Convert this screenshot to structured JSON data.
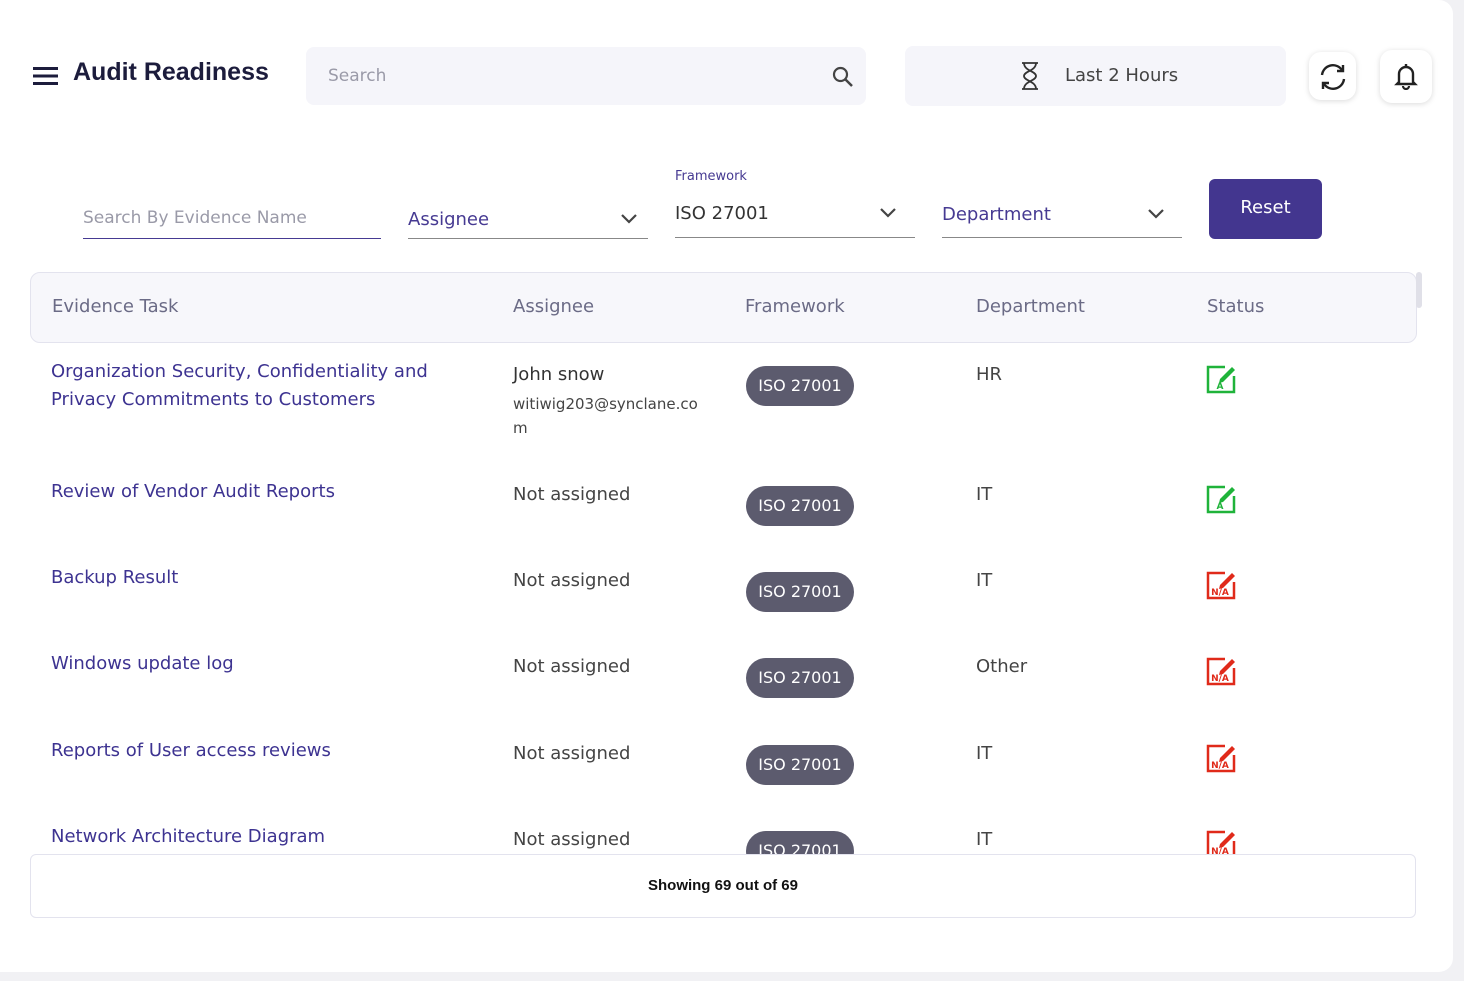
{
  "header": {
    "title": "Audit Readiness",
    "search_placeholder": "Search",
    "time_range": "Last 2 Hours"
  },
  "filters": {
    "evidence_placeholder": "Search By Evidence Name",
    "assignee": "Assignee",
    "framework_label": "Framework",
    "framework": "ISO 27001",
    "department": "Department",
    "reset": "Reset"
  },
  "table": {
    "columns": [
      "Evidence Task",
      "Assignee",
      "Framework",
      "Department",
      "Status"
    ],
    "rows": [
      {
        "task": "Organization Security, Confidentiality and Privacy Commitments to Customers",
        "assignee": "John snow",
        "email": "witiwig203@synclane.com",
        "framework": "ISO 27001",
        "department": "HR",
        "status": "A"
      },
      {
        "task": "Review of Vendor Audit Reports",
        "assignee": "Not assigned",
        "framework": "ISO 27001",
        "department": "IT",
        "status": "A"
      },
      {
        "task": "Backup Result",
        "assignee": "Not assigned",
        "framework": "ISO 27001",
        "department": "IT",
        "status": "N/A"
      },
      {
        "task": "Windows update log",
        "assignee": "Not assigned",
        "framework": "ISO 27001",
        "department": "Other",
        "status": "N/A"
      },
      {
        "task": "Reports of User access reviews",
        "assignee": "Not assigned",
        "framework": "ISO 27001",
        "department": "IT",
        "status": "N/A"
      },
      {
        "task": "Network Architecture Diagram",
        "assignee": "Not assigned",
        "framework": "ISO 27001",
        "department": "IT",
        "status": "N/A"
      }
    ]
  },
  "footer": {
    "summary": "Showing 69 out of 69"
  }
}
